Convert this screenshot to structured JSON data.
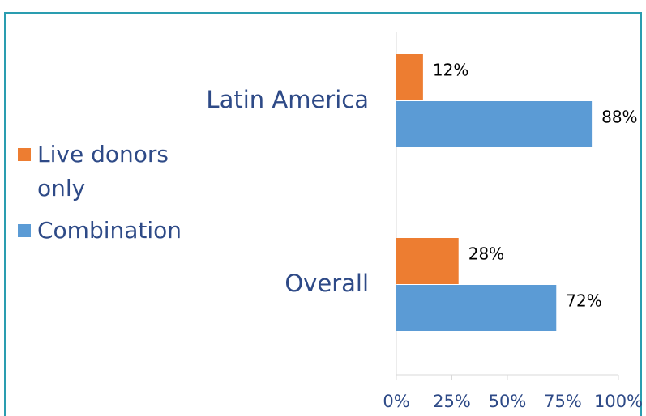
{
  "chart_data": {
    "type": "bar",
    "orientation": "horizontal",
    "categories": [
      "Latin America",
      "Overall"
    ],
    "series": [
      {
        "name": "Live donors only",
        "color": "#ED7D31",
        "values": [
          12,
          28
        ],
        "value_labels": [
          "12%",
          "28%"
        ]
      },
      {
        "name": "Combination",
        "color": "#5B9BD5",
        "values": [
          88,
          72
        ],
        "value_labels": [
          "88%",
          "72%"
        ]
      }
    ],
    "xlim": [
      0,
      100
    ],
    "xticks": [
      {
        "value": 0,
        "label": "0%"
      },
      {
        "value": 25,
        "label": "25%"
      },
      {
        "value": 50,
        "label": "50%"
      },
      {
        "value": 75,
        "label": "75%"
      },
      {
        "value": 100,
        "label": "100%"
      }
    ],
    "legend": "left"
  }
}
